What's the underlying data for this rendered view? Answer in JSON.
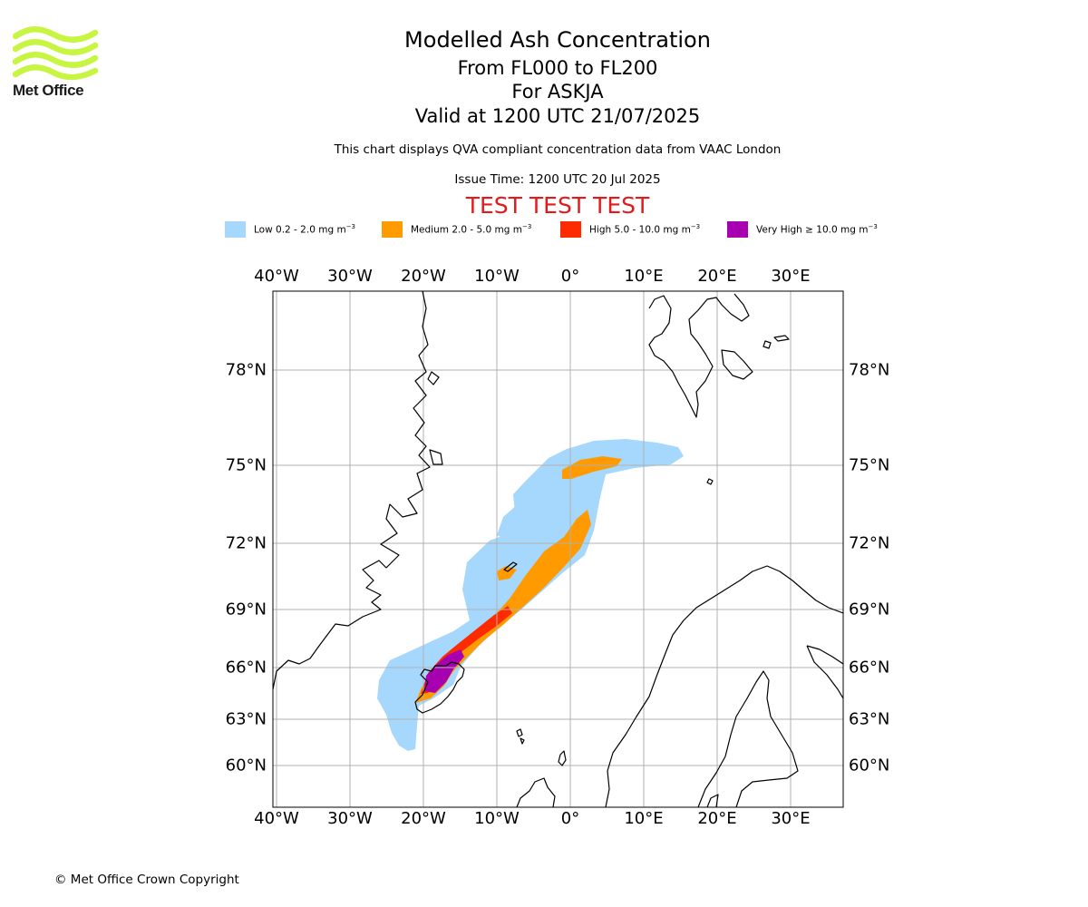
{
  "logo": {
    "text": "Met Office",
    "color": "#c8f542"
  },
  "header": {
    "title": "Modelled Ash Concentration",
    "level_range": "From FL000 to FL200",
    "volcano": "For ASKJA",
    "valid": "Valid at 1200 UTC 21/07/2025",
    "description": "This chart displays QVA compliant concentration data from VAAC London",
    "issue_time": "Issue Time: 1200 UTC 20 Jul 2025",
    "test_banner": "TEST TEST TEST"
  },
  "legend": [
    {
      "label": "Low 0.2 - 2.0 mg m",
      "unit_exp": "−3",
      "color": "#a6d7fc"
    },
    {
      "label": "Medium 2.0 - 5.0 mg m",
      "unit_exp": "−3",
      "color": "#ff9a00"
    },
    {
      "label": "High 5.0 - 10.0 mg m",
      "unit_exp": "−3",
      "color": "#ff2b00"
    },
    {
      "label": "Very High  ≥  10.0 mg m",
      "unit_exp": "−3",
      "color": "#a700b0"
    }
  ],
  "map": {
    "longitude_labels": [
      "40°W",
      "30°W",
      "20°W",
      "10°W",
      "0°",
      "10°E",
      "20°E",
      "30°E"
    ],
    "latitude_labels": [
      "78°N",
      "75°N",
      "72°N",
      "69°N",
      "66°N",
      "63°N",
      "60°N"
    ],
    "grid_color": "#b0b0b0",
    "coastline_color": "#000000"
  },
  "footer": {
    "copyright": "© Met Office Crown Copyright"
  }
}
